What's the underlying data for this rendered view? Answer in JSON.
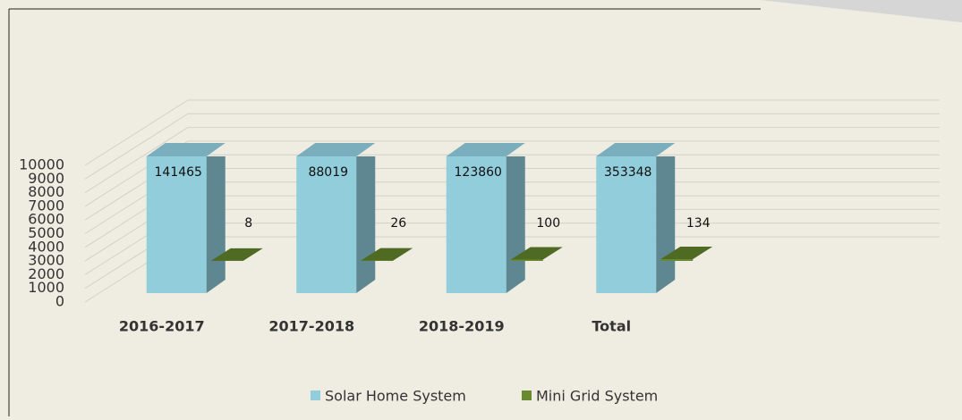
{
  "chart_data": {
    "type": "bar3d",
    "categories": [
      "2016-2017",
      "2017-2018",
      "2018-2019",
      "Total"
    ],
    "series": [
      {
        "name": "Solar Home System",
        "color": "#92cddc",
        "values": [
          141465,
          88019,
          123860,
          353348
        ]
      },
      {
        "name": "Mini Grid System",
        "color": "#6a8a32",
        "values": [
          8,
          26,
          100,
          134
        ]
      }
    ],
    "ylim": [
      0,
      10000
    ],
    "yticks": [
      0,
      1000,
      2000,
      3000,
      4000,
      5000,
      6000,
      7000,
      8000,
      9000,
      10000
    ],
    "grid": true,
    "legend": "bottom"
  }
}
